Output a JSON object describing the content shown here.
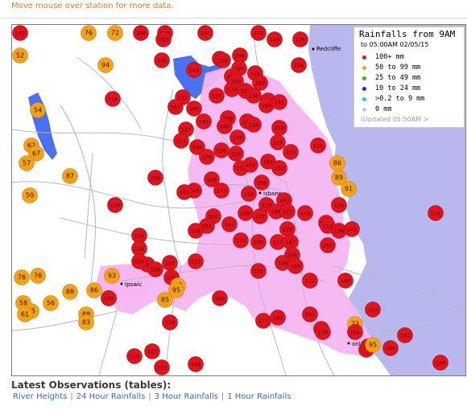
{
  "instruction": "Move mouse over station for more data.",
  "legend": {
    "title": "Rainfalls from 9AM",
    "subtitle": "to 05:00AM 02/05/15",
    "updated": "(Updated 05:50AM  >",
    "items": [
      {
        "label": "100+ mm",
        "color": "#e0141e"
      },
      {
        "label": "50  to 99 mm",
        "color": "#f5a016"
      },
      {
        "label": "25  to 49 mm",
        "color": "#1fbf1f"
      },
      {
        "label": "10  to 24 mm",
        "color": "#2222dd"
      },
      {
        "label": ">0.2 to 9 mm",
        "color": "#22cccc"
      },
      {
        "label": "0 mm",
        "color": "#c8c8c8"
      }
    ]
  },
  "places": [
    {
      "name": "Redcliffe"
    },
    {
      "name": "Brisbane",
      "shown": "isbane"
    },
    {
      "name": "Ipswich",
      "shown": "Ipswic"
    },
    {
      "name": "Beenleigh",
      "shown": "onleigh"
    }
  ],
  "colors": {
    "red": "#e0141e",
    "orange": "#f5a016",
    "pink": "#f5b6f2",
    "water": "#7b80e8",
    "sea": "#b7b9ee"
  },
  "stations": [
    {
      "v": "76",
      "c": "o"
    },
    {
      "v": "72",
      "c": "o"
    },
    {
      "v": "108",
      "c": "r"
    },
    {
      "v": "105",
      "c": "r"
    },
    {
      "v": "183",
      "c": "r"
    },
    {
      "v": "150",
      "c": "r"
    },
    {
      "v": "172",
      "c": "r"
    },
    {
      "v": "149",
      "c": "r"
    },
    {
      "v": "109",
      "c": "r"
    },
    {
      "v": "52",
      "c": "o"
    },
    {
      "v": "94",
      "c": "o"
    },
    {
      "v": "145",
      "c": "r"
    },
    {
      "v": "183",
      "c": "r"
    },
    {
      "v": "216",
      "c": "r"
    },
    {
      "v": "198",
      "c": "r"
    },
    {
      "v": "255",
      "c": "r"
    },
    {
      "v": "238",
      "c": "r"
    },
    {
      "v": "178",
      "c": "r"
    },
    {
      "v": "128",
      "c": "r"
    },
    {
      "v": "143",
      "c": "r"
    },
    {
      "v": "124",
      "c": "r"
    },
    {
      "v": "250",
      "c": "r"
    },
    {
      "v": "226",
      "c": "r"
    },
    {
      "v": "193",
      "c": "r"
    },
    {
      "v": "132",
      "c": "r"
    },
    {
      "v": "136",
      "c": "r"
    },
    {
      "v": "185",
      "c": "r"
    },
    {
      "v": "116",
      "c": "r"
    },
    {
      "v": "167",
      "c": "r"
    },
    {
      "v": "54",
      "c": "o"
    },
    {
      "v": "117",
      "c": "r"
    },
    {
      "v": "238",
      "c": "r"
    },
    {
      "v": "269",
      "c": "r"
    },
    {
      "v": "172",
      "c": "r"
    },
    {
      "v": "128",
      "c": "r"
    },
    {
      "v": "194",
      "c": "r"
    },
    {
      "v": "146",
      "c": "r"
    },
    {
      "v": "249",
      "c": "r"
    },
    {
      "v": "246",
      "c": "r"
    },
    {
      "v": "218",
      "c": "r"
    },
    {
      "v": "127",
      "c": "r"
    },
    {
      "v": "111",
      "c": "r"
    },
    {
      "v": "176",
      "c": "r"
    },
    {
      "v": "219",
      "c": "r"
    },
    {
      "v": "248",
      "c": "r"
    },
    {
      "v": "158",
      "c": "r"
    },
    {
      "v": "62",
      "c": "o"
    },
    {
      "v": "67",
      "c": "o"
    },
    {
      "v": "57",
      "c": "o"
    },
    {
      "v": "178",
      "c": "r"
    },
    {
      "v": "218",
      "c": "r"
    },
    {
      "v": "210",
      "c": "r"
    },
    {
      "v": "120",
      "c": "r"
    },
    {
      "v": "174",
      "c": "r"
    },
    {
      "v": "192",
      "c": "r"
    },
    {
      "v": "187",
      "c": "r"
    },
    {
      "v": "250",
      "c": "r"
    },
    {
      "v": "86",
      "c": "o"
    },
    {
      "v": "87",
      "c": "o"
    },
    {
      "v": "164",
      "c": "r"
    },
    {
      "v": "149",
      "c": "r"
    },
    {
      "v": "173",
      "c": "r"
    },
    {
      "v": "140",
      "c": "r"
    },
    {
      "v": "188",
      "c": "r"
    },
    {
      "v": "89",
      "c": "o"
    },
    {
      "v": "91",
      "c": "o"
    },
    {
      "v": "50",
      "c": "o"
    },
    {
      "v": "162",
      "c": "r"
    },
    {
      "v": "152",
      "c": "r"
    },
    {
      "v": "164",
      "c": "r"
    },
    {
      "v": "190",
      "c": "r"
    },
    {
      "v": "170",
      "c": "r"
    },
    {
      "v": "156",
      "c": "r"
    },
    {
      "v": "186",
      "c": "r"
    },
    {
      "v": "147",
      "c": "r"
    },
    {
      "v": "175",
      "c": "r"
    },
    {
      "v": "145",
      "c": "r"
    },
    {
      "v": "151",
      "c": "r"
    },
    {
      "v": "142",
      "c": "r"
    },
    {
      "v": "154",
      "c": "r"
    },
    {
      "v": "158",
      "c": "r"
    },
    {
      "v": "105",
      "c": "r"
    },
    {
      "v": "146",
      "c": "r"
    },
    {
      "v": "125",
      "c": "r"
    },
    {
      "v": "113",
      "c": "r"
    },
    {
      "v": "146",
      "c": "r"
    },
    {
      "v": "176",
      "c": "r"
    },
    {
      "v": "160",
      "c": "r"
    },
    {
      "v": "177",
      "c": "r"
    },
    {
      "v": "167",
      "c": "r"
    },
    {
      "v": "111",
      "c": "r"
    },
    {
      "v": "138",
      "c": "r"
    },
    {
      "v": "142",
      "c": "r"
    },
    {
      "v": "153",
      "c": "r"
    },
    {
      "v": "128",
      "c": "r"
    },
    {
      "v": "106",
      "c": "r"
    },
    {
      "v": "156",
      "c": "r"
    },
    {
      "v": "155",
      "c": "r"
    },
    {
      "v": "133",
      "c": "r"
    },
    {
      "v": "157",
      "c": "r"
    },
    {
      "v": "150",
      "c": "r"
    },
    {
      "v": "189",
      "c": "r"
    },
    {
      "v": "93",
      "c": "o"
    },
    {
      "v": "159",
      "c": "r"
    },
    {
      "v": "156",
      "c": "r"
    },
    {
      "v": "134",
      "c": "r"
    },
    {
      "v": "76",
      "c": "o"
    },
    {
      "v": "76",
      "c": "o"
    },
    {
      "v": "90",
      "c": "o"
    },
    {
      "v": "95",
      "c": "o"
    },
    {
      "v": "139",
      "c": "r"
    },
    {
      "v": "88",
      "c": "o"
    },
    {
      "v": "86",
      "c": "o"
    },
    {
      "v": "126",
      "c": "r"
    },
    {
      "v": "166",
      "c": "r"
    },
    {
      "v": "172",
      "c": "r"
    },
    {
      "v": "165",
      "c": "r"
    },
    {
      "v": "58",
      "c": "o"
    },
    {
      "v": "56",
      "c": "o"
    },
    {
      "v": "65",
      "c": "o"
    },
    {
      "v": "61",
      "c": "o"
    },
    {
      "v": "88",
      "c": "o"
    },
    {
      "v": "83",
      "c": "o"
    },
    {
      "v": "85",
      "c": "o"
    },
    {
      "v": "128",
      "c": "r"
    },
    {
      "v": "177",
      "c": "r"
    },
    {
      "v": "189",
      "c": "r"
    },
    {
      "v": "155",
      "c": "r"
    },
    {
      "v": "73",
      "c": "o"
    },
    {
      "v": "136",
      "c": "r"
    },
    {
      "v": "138",
      "c": "r"
    },
    {
      "v": "143",
      "c": "r"
    },
    {
      "v": "164",
      "c": "r"
    },
    {
      "v": "103",
      "c": "r"
    },
    {
      "v": "186",
      "c": "r"
    },
    {
      "v": "132",
      "c": "r"
    },
    {
      "v": "110",
      "c": "r"
    },
    {
      "v": "113",
      "c": "r"
    },
    {
      "v": "146",
      "c": "r"
    },
    {
      "v": "151",
      "c": "r"
    },
    {
      "v": "159",
      "c": "r"
    },
    {
      "v": "95",
      "c": "o"
    },
    {
      "v": "115",
      "c": "r"
    },
    {
      "v": "145",
      "c": "r"
    }
  ],
  "footer": {
    "title": "Latest Observations (tables):",
    "links": [
      "River Heights",
      "24 Hour Rainfalls",
      "3 Hour Rainfalls",
      "1 Hour Rainfalls"
    ]
  }
}
